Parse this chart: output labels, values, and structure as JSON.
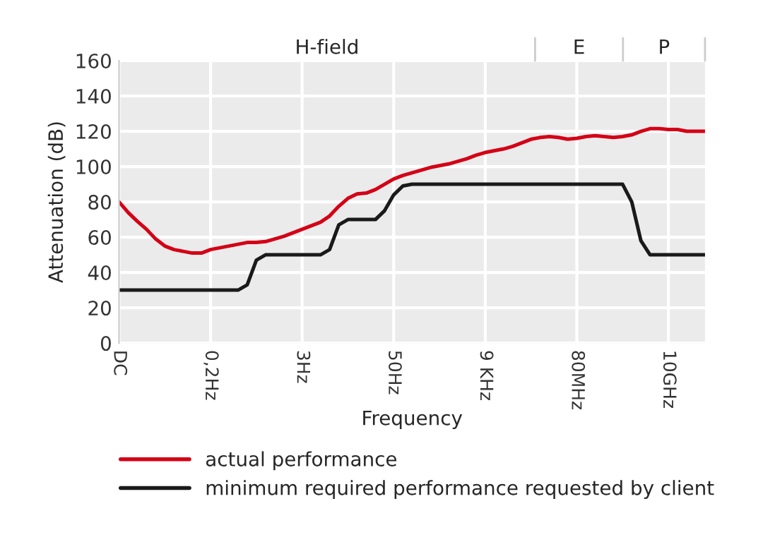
{
  "chart_data": {
    "type": "line",
    "xlabel": "Frequency",
    "ylabel": "Attenuation (dB)",
    "categories": [
      "DC",
      null,
      null,
      null,
      null,
      null,
      null,
      null,
      null,
      null,
      "0,2Hz",
      null,
      null,
      null,
      null,
      null,
      null,
      null,
      null,
      null,
      "3Hz",
      null,
      null,
      null,
      null,
      null,
      null,
      null,
      null,
      null,
      "50Hz",
      null,
      null,
      null,
      null,
      null,
      null,
      null,
      null,
      null,
      "9 KHz",
      null,
      null,
      null,
      null,
      null,
      null,
      null,
      null,
      null,
      "80MHz",
      null,
      null,
      null,
      null,
      null,
      null,
      null,
      null,
      null,
      "10GHz",
      null,
      null,
      null,
      null
    ],
    "ylim": [
      0,
      160
    ],
    "yticks": [
      0,
      20,
      40,
      60,
      80,
      100,
      120,
      140,
      160
    ],
    "grid": true,
    "legend": "bottom",
    "annotations": [
      "H-field",
      "E",
      "P"
    ],
    "series": [
      {
        "name": "actual performance",
        "color": "#d40016",
        "values": [
          80,
          74,
          69,
          64.5,
          59,
          55,
          53,
          52,
          51,
          51,
          53,
          54,
          55,
          56,
          57,
          57,
          57.5,
          59,
          60.5,
          62.5,
          64.5,
          66.5,
          68.5,
          72,
          77.5,
          82,
          84.5,
          85,
          87,
          90,
          93,
          95,
          96.5,
          98,
          99.5,
          100.5,
          101.5,
          103,
          104.5,
          106.5,
          108,
          109,
          110,
          111.5,
          113.5,
          115.5,
          116.5,
          117,
          116.5,
          115.5,
          116,
          117,
          117.5,
          117,
          116.5,
          117,
          118,
          120,
          121.5,
          121.5,
          121,
          121,
          120,
          120,
          120
        ]
      },
      {
        "name": "minimum required performance requested by client",
        "color": "#1a1a1a",
        "values": [
          30,
          30,
          30,
          30,
          30,
          30,
          30,
          30,
          30,
          30,
          30,
          30,
          30,
          30,
          33,
          47,
          50,
          50,
          50,
          50,
          50,
          50,
          50,
          53,
          67,
          70,
          70,
          70,
          70,
          75,
          84,
          89,
          90,
          90,
          90,
          90,
          90,
          90,
          90,
          90,
          90,
          90,
          90,
          90,
          90,
          90,
          90,
          90,
          90,
          90,
          90,
          90,
          90,
          90,
          90,
          90,
          80,
          58,
          50,
          50,
          50,
          50,
          50,
          50,
          50
        ]
      }
    ]
  }
}
